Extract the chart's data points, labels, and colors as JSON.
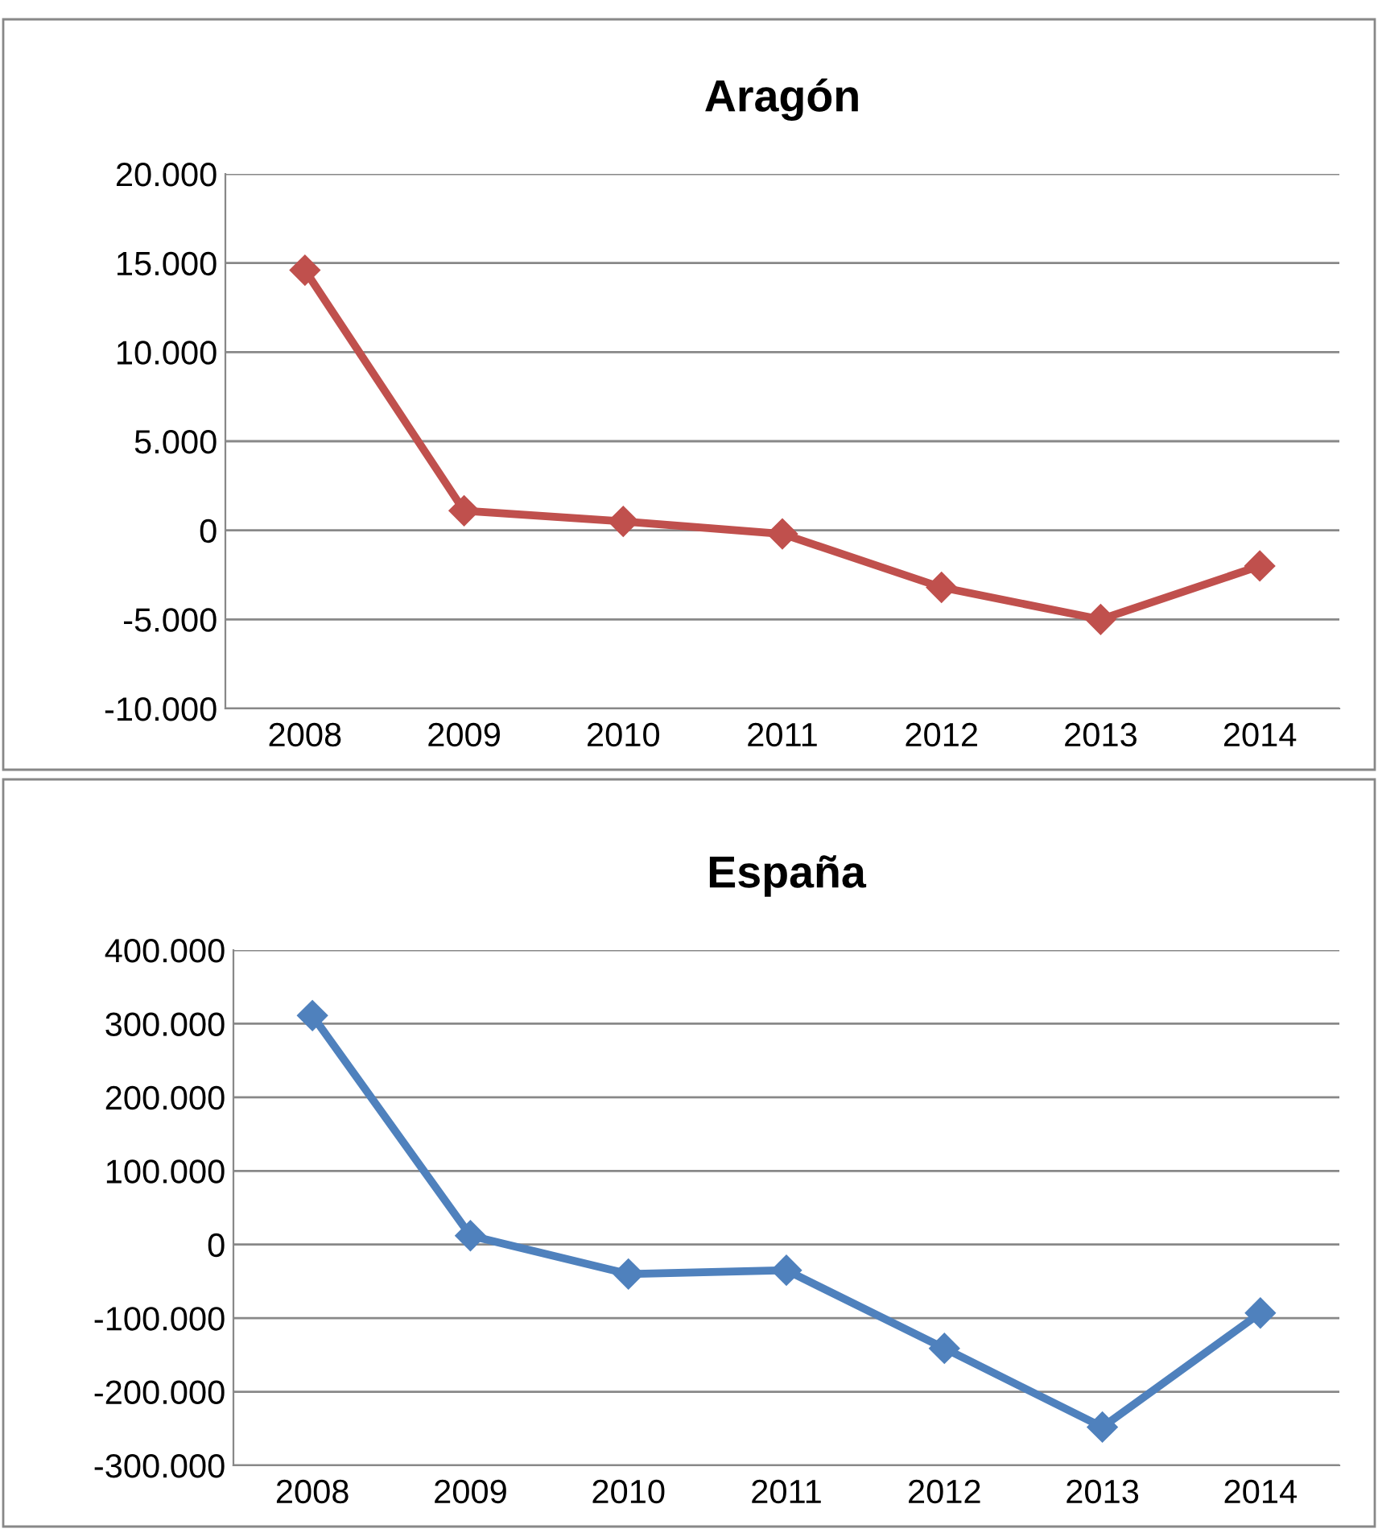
{
  "chart_data": [
    {
      "type": "line",
      "title": "Aragón",
      "categories": [
        "2008",
        "2009",
        "2010",
        "2011",
        "2012",
        "2013",
        "2014"
      ],
      "series": [
        {
          "color": "#c0504d",
          "values": [
            14600,
            1100,
            500,
            -200,
            -3200,
            -5000,
            -2000
          ]
        }
      ],
      "ylim": [
        -10000,
        20000
      ],
      "yticks": [
        {
          "value": -10000,
          "label": "-10.000"
        },
        {
          "value": -5000,
          "label": "-5.000"
        },
        {
          "value": 0,
          "label": "0"
        },
        {
          "value": 5000,
          "label": "5.000"
        },
        {
          "value": 10000,
          "label": "10.000"
        },
        {
          "value": 15000,
          "label": "15.000"
        },
        {
          "value": 20000,
          "label": "20.000"
        }
      ],
      "grid": "y",
      "legend": false,
      "marker": "diamond",
      "line_style": "solid"
    },
    {
      "type": "line",
      "title": "España",
      "categories": [
        "2008",
        "2009",
        "2010",
        "2011",
        "2012",
        "2013",
        "2014"
      ],
      "series": [
        {
          "color": "#4f81bd",
          "values": [
            311000,
            12000,
            -40000,
            -35000,
            -141000,
            -248000,
            -93000
          ]
        }
      ],
      "ylim": [
        -300000,
        400000
      ],
      "yticks": [
        {
          "value": -300000,
          "label": "-300.000"
        },
        {
          "value": -200000,
          "label": "-200.000"
        },
        {
          "value": -100000,
          "label": "-100.000"
        },
        {
          "value": 0,
          "label": "0"
        },
        {
          "value": 100000,
          "label": "100.000"
        },
        {
          "value": 200000,
          "label": "200.000"
        },
        {
          "value": 300000,
          "label": "300.000"
        },
        {
          "value": 400000,
          "label": "400.000"
        }
      ],
      "grid": "y",
      "legend": false,
      "marker": "diamond",
      "line_style": "solid"
    }
  ]
}
